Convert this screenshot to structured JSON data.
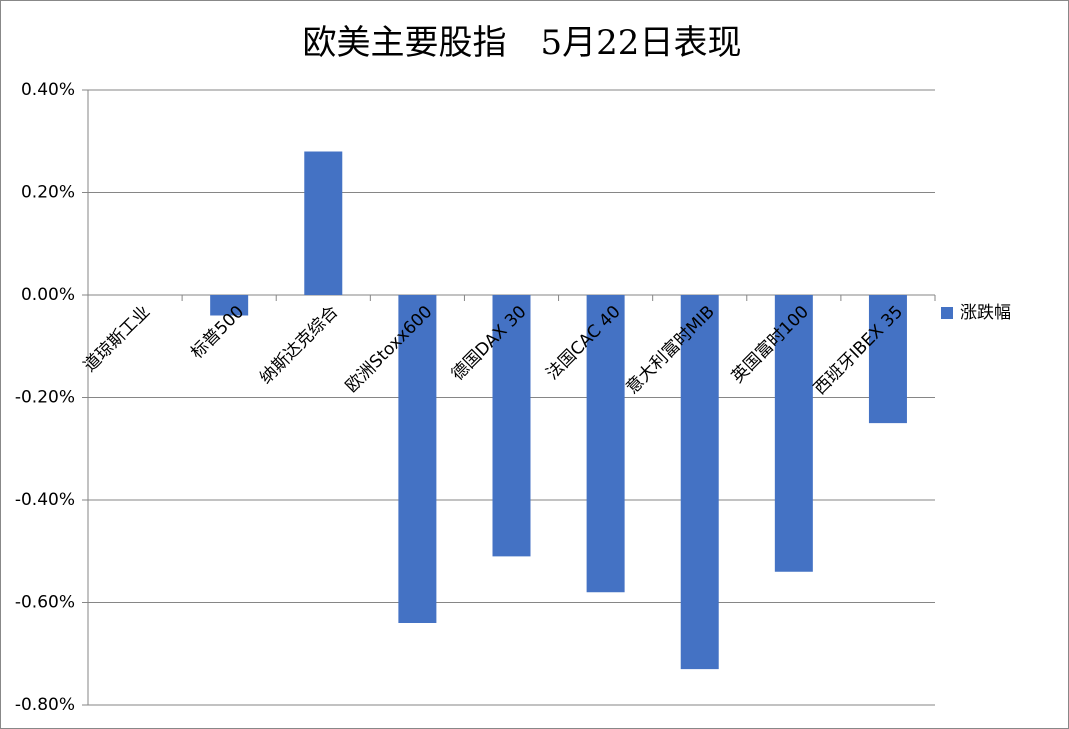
{
  "chart_data": {
    "type": "bar",
    "title": "欧美主要股指　5月22日表现",
    "categories": [
      "道琼斯工业",
      "标普500",
      "纳斯达克综合",
      "欧洲Stoxx600",
      "德国DAX 30",
      "法国CAC 40",
      "意大利富时MIB",
      "英国富时100",
      "西班牙IBEX 35"
    ],
    "series": [
      {
        "name": "涨跌幅",
        "color": "#4472c4",
        "values": [
          0,
          -0.04,
          0.28,
          -0.64,
          -0.51,
          -0.58,
          -0.73,
          -0.54,
          -0.25
        ]
      }
    ],
    "ylim": [
      -0.8,
      0.4
    ],
    "yticks": [
      {
        "value": -0.8,
        "label": "-0.80%"
      },
      {
        "value": -0.6,
        "label": "-0.60%"
      },
      {
        "value": -0.4,
        "label": "-0.40%"
      },
      {
        "value": -0.2,
        "label": "-0.20%"
      },
      {
        "value": 0,
        "label": "0.00%"
      },
      {
        "value": 0.2,
        "label": "0.20%"
      },
      {
        "value": 0.4,
        "label": "0.40%"
      }
    ],
    "grid": true,
    "legend": "right"
  }
}
